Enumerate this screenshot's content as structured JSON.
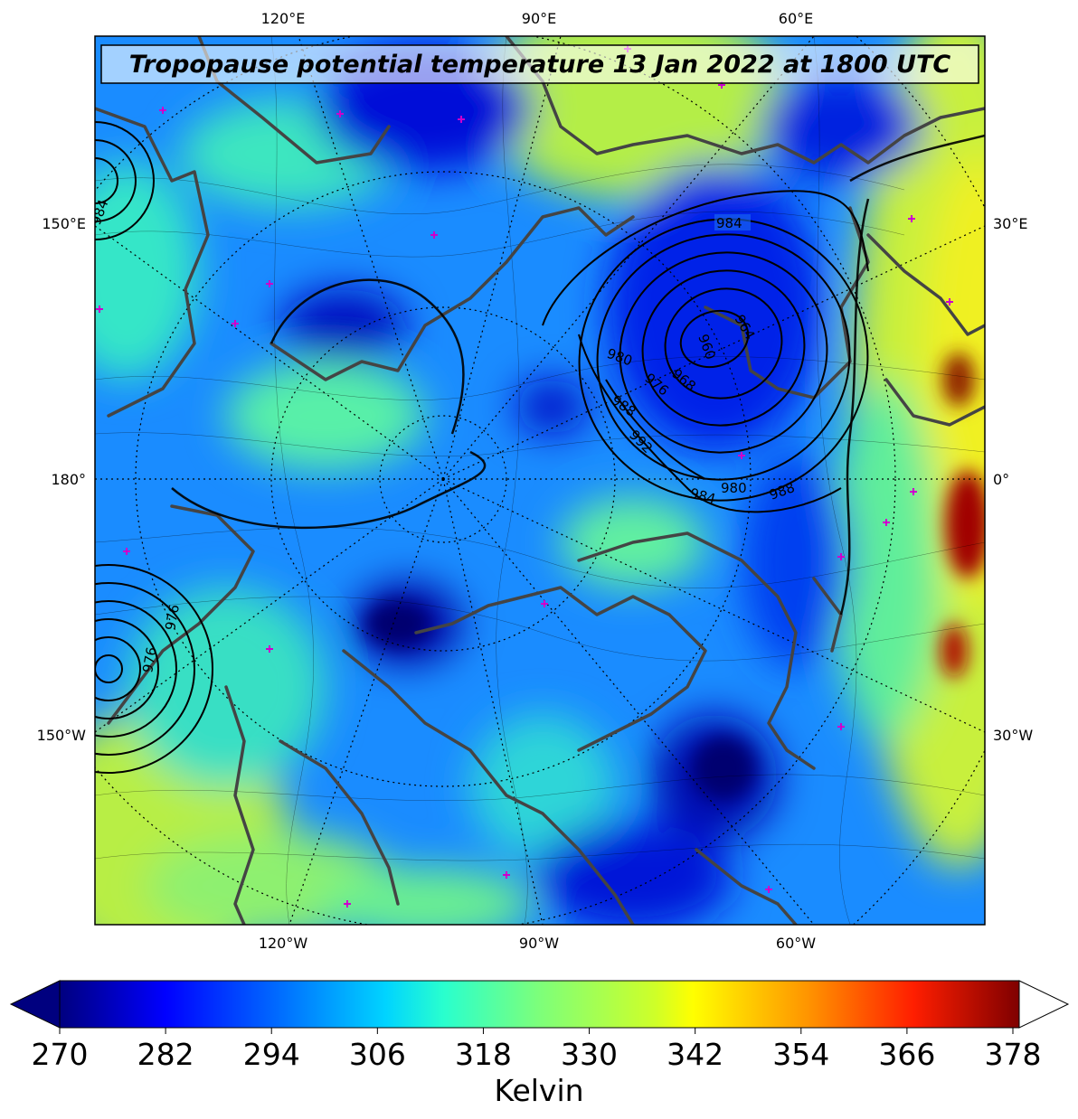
{
  "map": {
    "title": "Tropopause potential temperature 13 Jan 2022 at 1800 UTC",
    "top_labels": [
      "120°E",
      "90°E",
      "60°E"
    ],
    "bottom_labels": [
      "120°W",
      "90°W",
      "60°W"
    ],
    "left_labels": [
      "150°E",
      "180°",
      "150°W"
    ],
    "right_labels": [
      "30°E",
      "0°",
      "30°W"
    ],
    "isobar_labels": [
      "984",
      "964",
      "960",
      "968",
      "976",
      "980",
      "988",
      "992",
      "984",
      "980",
      "988",
      "984",
      "976",
      "976"
    ],
    "coastline_color": "#444444",
    "marker_color": "#cc00cc"
  },
  "colorbar": {
    "ticks": [
      "270",
      "282",
      "294",
      "306",
      "318",
      "330",
      "342",
      "354",
      "366",
      "378"
    ],
    "label": "Kelvin",
    "colormap": "jet"
  }
}
